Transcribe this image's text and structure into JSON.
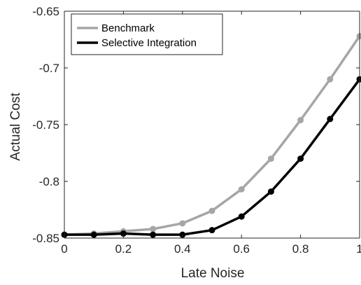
{
  "chart_data": {
    "type": "line",
    "title": "",
    "xlabel": "Late Noise",
    "ylabel": "Actual Cost",
    "xlim": [
      0,
      1
    ],
    "ylim": [
      -0.85,
      -0.65
    ],
    "x_ticks": [
      0,
      0.2,
      0.4,
      0.6,
      0.8,
      1
    ],
    "x_tick_labels": [
      "0",
      "0.2",
      "0.4",
      "0.6",
      "0.8",
      "1"
    ],
    "y_ticks": [
      -0.85,
      -0.8,
      -0.75,
      -0.7,
      -0.65
    ],
    "y_tick_labels": [
      "-0.85",
      "-0.8",
      "-0.75",
      "-0.7",
      "-0.65"
    ],
    "grid": false,
    "legend_position": "top-left",
    "x": [
      0,
      0.1,
      0.2,
      0.3,
      0.4,
      0.5,
      0.6,
      0.7,
      0.8,
      0.9,
      1.0
    ],
    "series": [
      {
        "name": "Benchmark",
        "color": "#a6a6a6",
        "values": [
          -0.847,
          -0.846,
          -0.844,
          -0.842,
          -0.837,
          -0.826,
          -0.807,
          -0.78,
          -0.746,
          -0.71,
          -0.672
        ]
      },
      {
        "name": "Selective Integration",
        "color": "#000000",
        "values": [
          -0.847,
          -0.847,
          -0.846,
          -0.847,
          -0.847,
          -0.843,
          -0.831,
          -0.809,
          -0.78,
          -0.745,
          -0.71
        ]
      }
    ]
  }
}
